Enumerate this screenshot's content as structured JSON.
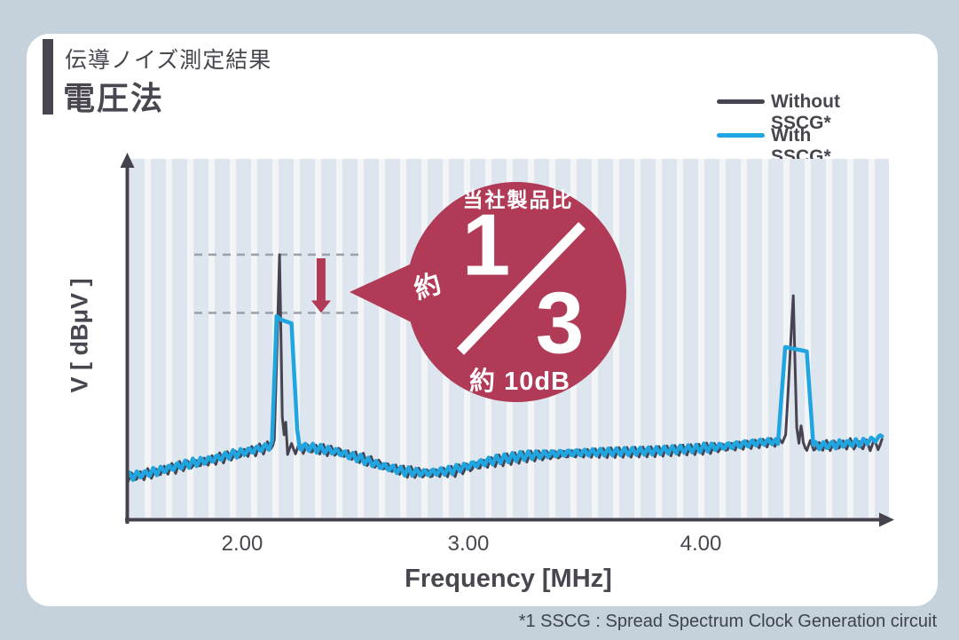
{
  "page": {
    "background": "#c5d2db",
    "card_background": "#ffffff",
    "text_dark": "#4a4650"
  },
  "header": {
    "title_small": "伝導ノイズ測定結果",
    "title_large": "電圧法"
  },
  "legend": {
    "items": [
      {
        "label": "Without SSCG*",
        "color": "#474350"
      },
      {
        "label": "With SSCG*",
        "color": "#21a5e1"
      }
    ]
  },
  "chart": {
    "y_axis_label": "V [ dBμV ]",
    "x_axis_label": "Frequency [MHz]",
    "x_ticks": [
      "2.00",
      "3.00",
      "4.00"
    ]
  },
  "callout": {
    "top_label": "当社製品比",
    "approx_label": "約",
    "numerator": "1",
    "denominator": "3",
    "bottom_label": "約 10dB",
    "color": "#b13a57",
    "text_color": "#ffffff"
  },
  "footer": {
    "note": "*1 SSCG : Spread Spectrum Clock Generation circuit"
  },
  "chart_data": {
    "type": "line",
    "title": "伝導ノイズ測定結果（電圧法）",
    "xlabel": "Frequency [MHz]",
    "ylabel": "V [ dBμV ]",
    "x_range": [
      1.49,
      4.82
    ],
    "x_tick_values": [
      2.0,
      3.0,
      4.0
    ],
    "y_units": "relative level (no ticks shown), 0–100 of plot height",
    "legend_position": "top-right",
    "grid": "decorative vertical stripes",
    "series": [
      {
        "name": "Without SSCG*",
        "color": "#474350",
        "points": [
          [
            1.5,
            11.6
          ],
          [
            1.58,
            12.4
          ],
          [
            1.66,
            13.6
          ],
          [
            1.76,
            15.1
          ],
          [
            1.86,
            16.3
          ],
          [
            1.96,
            17.8
          ],
          [
            2.05,
            19.0
          ],
          [
            2.11,
            20.0
          ],
          [
            2.14,
            21.5
          ],
          [
            2.163,
            73.6
          ],
          [
            2.175,
            28.5
          ],
          [
            2.183,
            23.0
          ],
          [
            2.19,
            27.0
          ],
          [
            2.198,
            19.5
          ],
          [
            2.25,
            19.8
          ],
          [
            2.33,
            19.5
          ],
          [
            2.42,
            18.8
          ],
          [
            2.52,
            17.0
          ],
          [
            2.62,
            14.8
          ],
          [
            2.72,
            13.2
          ],
          [
            2.82,
            12.7
          ],
          [
            2.92,
            13.3
          ],
          [
            3.02,
            14.9
          ],
          [
            3.12,
            16.3
          ],
          [
            3.25,
            17.5
          ],
          [
            3.42,
            18.2
          ],
          [
            3.6,
            18.5
          ],
          [
            3.8,
            18.8
          ],
          [
            4.0,
            19.5
          ],
          [
            4.15,
            20.3
          ],
          [
            4.28,
            21.2
          ],
          [
            4.34,
            21.5
          ],
          [
            4.37,
            23.0
          ],
          [
            4.403,
            62.2
          ],
          [
            4.418,
            25.5
          ],
          [
            4.428,
            22.0
          ],
          [
            4.437,
            26.0
          ],
          [
            4.447,
            20.5
          ],
          [
            4.5,
            20.3
          ],
          [
            4.58,
            20.6
          ],
          [
            4.66,
            20.9
          ],
          [
            4.73,
            20.6
          ],
          [
            4.79,
            20.9
          ]
        ]
      },
      {
        "name": "With SSCG*",
        "color": "#21a5e1",
        "points": [
          [
            1.5,
            11.9
          ],
          [
            1.58,
            12.7
          ],
          [
            1.66,
            13.9
          ],
          [
            1.76,
            15.4
          ],
          [
            1.86,
            16.6
          ],
          [
            1.96,
            18.1
          ],
          [
            2.05,
            19.3
          ],
          [
            2.11,
            20.2
          ],
          [
            2.13,
            21.0
          ],
          [
            2.15,
            56.5
          ],
          [
            2.17,
            55.5
          ],
          [
            2.215,
            54.5
          ],
          [
            2.24,
            25.0
          ],
          [
            2.25,
            20.2
          ],
          [
            2.3,
            20.0
          ],
          [
            2.4,
            19.0
          ],
          [
            2.5,
            17.2
          ],
          [
            2.6,
            15.0
          ],
          [
            2.7,
            13.4
          ],
          [
            2.8,
            12.9
          ],
          [
            2.9,
            13.5
          ],
          [
            3.0,
            15.1
          ],
          [
            3.1,
            16.5
          ],
          [
            3.23,
            17.7
          ],
          [
            3.4,
            18.4
          ],
          [
            3.58,
            18.7
          ],
          [
            3.78,
            19.0
          ],
          [
            3.98,
            19.7
          ],
          [
            4.13,
            20.5
          ],
          [
            4.26,
            21.4
          ],
          [
            4.32,
            21.7
          ],
          [
            4.336,
            21.0
          ],
          [
            4.368,
            47.9
          ],
          [
            4.462,
            46.7
          ],
          [
            4.49,
            21.0
          ],
          [
            4.5,
            20.4
          ],
          [
            4.55,
            20.6
          ],
          [
            4.62,
            21.0
          ],
          [
            4.7,
            21.4
          ],
          [
            4.76,
            22.2
          ],
          [
            4.79,
            23.2
          ]
        ]
      }
    ],
    "annotations": {
      "peak1_freq_mhz": 2.16,
      "peak2_freq_mhz": 4.4,
      "dashed_levels": [
        73.6,
        57.4
      ],
      "dashed_freq_range": [
        1.79,
        2.53
      ],
      "reduction_arrow": {
        "freq": 2.344,
        "from_level": 72.6,
        "to_level": 57.4
      },
      "reduction_ratio": "約 1/3",
      "reduction_db": "約 10dB",
      "comparison_basis": "当社製品比"
    }
  }
}
